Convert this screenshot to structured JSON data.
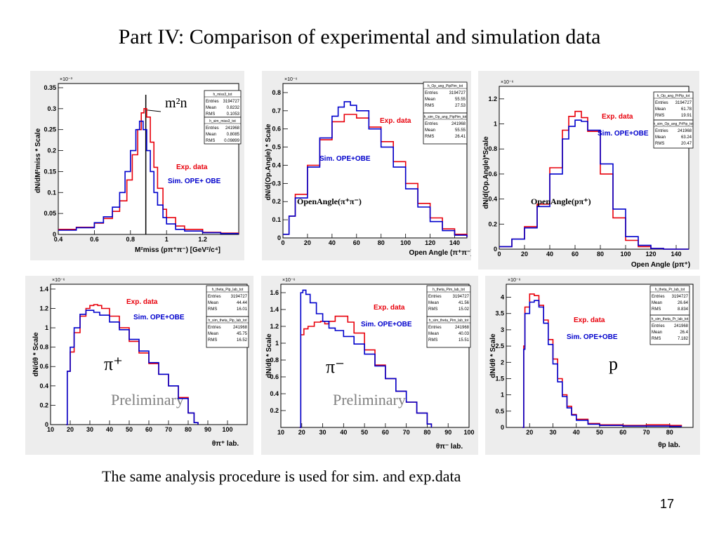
{
  "slide": {
    "title": "Part IV: Comparison of experimental  and simulation data",
    "footer": "The same analysis procedure is used for sim. and exp.data",
    "page_number": "17"
  },
  "colors": {
    "exp": "#e8000b",
    "sim": "#0000cc",
    "frame": "#000000",
    "panel_bg": "#ededed"
  },
  "chart_data": [
    {
      "type": "line",
      "name": "mm2",
      "exponent": "×10⁻³",
      "ylabel": "dN/dM²miss * Scale",
      "xlabel": "M²miss (pπ⁺π⁻) [GeV²/c⁴]",
      "xlim": [
        0.4,
        1.4
      ],
      "ylim": [
        0,
        0.36
      ],
      "xticks": [
        0.4,
        0.6,
        0.8,
        1,
        1.2
      ],
      "yticks": [
        0,
        0.05,
        0.1,
        0.15,
        0.2,
        0.25,
        0.3,
        0.35
      ],
      "exp_label": "Exp. data",
      "sim_label": "Sim. OPE+ OBE",
      "annotation": "m²n",
      "marker_x": 0.885,
      "statbox": [
        {
          "name": "h_miss3_tot",
          "rows": [
            [
              "Entries",
              "3194727"
            ],
            [
              "Mean",
              "0.8232"
            ],
            [
              "RMS",
              "0.1053"
            ]
          ]
        },
        {
          "name": "h_sim_miss3_tot",
          "rows": [
            [
              "Entries",
              "241968"
            ],
            [
              "Mean",
              "0.8085"
            ],
            [
              "RMS",
              "0.09899"
            ]
          ]
        }
      ],
      "series": [
        {
          "name": "Exp. data",
          "color": "#e8000b",
          "x": [
            0.4,
            0.5,
            0.6,
            0.65,
            0.7,
            0.74,
            0.78,
            0.81,
            0.84,
            0.86,
            0.875,
            0.89,
            0.91,
            0.93,
            0.95,
            0.98,
            1.0,
            1.05,
            1.1,
            1.2,
            1.3,
            1.4
          ],
          "y": [
            0.012,
            0.017,
            0.027,
            0.038,
            0.055,
            0.08,
            0.13,
            0.19,
            0.25,
            0.29,
            0.3,
            0.28,
            0.22,
            0.16,
            0.11,
            0.06,
            0.04,
            0.02,
            0.012,
            0.005,
            0.003,
            0.002
          ]
        },
        {
          "name": "Sim. OPE+ OBE",
          "color": "#0000cc",
          "x": [
            0.4,
            0.5,
            0.6,
            0.65,
            0.7,
            0.74,
            0.77,
            0.8,
            0.83,
            0.85,
            0.87,
            0.89,
            0.91,
            0.93,
            0.95,
            0.98,
            1.0,
            1.05,
            1.1,
            1.2,
            1.3,
            1.4
          ],
          "y": [
            0.01,
            0.016,
            0.028,
            0.042,
            0.065,
            0.1,
            0.15,
            0.2,
            0.25,
            0.27,
            0.25,
            0.2,
            0.15,
            0.1,
            0.07,
            0.04,
            0.025,
            0.012,
            0.008,
            0.004,
            0.002,
            0.002
          ]
        }
      ]
    },
    {
      "type": "line",
      "name": "openangle-pipi",
      "exponent": "×10⁻⁶",
      "ylabel": "dN/d(Op.Angle) * Scale",
      "xlabel": "Open Angle (π⁺π⁻)",
      "xlim": [
        0,
        150
      ],
      "ylim": [
        0,
        0.85
      ],
      "xticks": [
        0,
        20,
        40,
        60,
        80,
        100,
        120,
        140
      ],
      "yticks": [
        0,
        0.1,
        0.2,
        0.3,
        0.4,
        0.5,
        0.6,
        0.7,
        0.8
      ],
      "exp_label": "Exp. data",
      "sim_label": "Sim. OPE+OBE",
      "annotation": "OpenAngle(π⁺π⁻)",
      "statbox": [
        {
          "name": "h_Op_ang_PipPim_tot",
          "rows": [
            [
              "Entries",
              "3194727"
            ],
            [
              "Mean",
              "55.55"
            ],
            [
              "RMS",
              "27.53"
            ]
          ]
        },
        {
          "name": "h_sim_Op_ang_PipPim_tot",
          "rows": [
            [
              "Entries",
              "241968"
            ],
            [
              "Mean",
              "55.55"
            ],
            [
              "RMS",
              "26.41"
            ]
          ]
        }
      ],
      "series": [
        {
          "name": "Exp. data",
          "color": "#e8000b",
          "x": [
            0,
            5,
            10,
            20,
            30,
            40,
            50,
            55,
            60,
            70,
            80,
            90,
            100,
            110,
            120,
            130,
            140,
            150
          ],
          "y": [
            0.02,
            0.12,
            0.24,
            0.4,
            0.54,
            0.64,
            0.68,
            0.68,
            0.66,
            0.61,
            0.53,
            0.42,
            0.3,
            0.19,
            0.11,
            0.05,
            0.02,
            0.005
          ]
        },
        {
          "name": "Sim. OPE+OBE",
          "color": "#0000cc",
          "x": [
            0,
            5,
            10,
            20,
            30,
            40,
            45,
            50,
            55,
            60,
            70,
            80,
            90,
            100,
            110,
            120,
            130,
            140,
            150
          ],
          "y": [
            0.02,
            0.12,
            0.22,
            0.39,
            0.55,
            0.67,
            0.72,
            0.75,
            0.73,
            0.7,
            0.6,
            0.5,
            0.39,
            0.27,
            0.17,
            0.09,
            0.04,
            0.015,
            0.005
          ]
        }
      ]
    },
    {
      "type": "line",
      "name": "openangle-ppip",
      "exponent": "×10⁻⁶",
      "ylabel": "dN/d(Op.Angle)*Scale",
      "xlabel": "Open Angle (pπ⁺)",
      "xlim": [
        0,
        150
      ],
      "ylim": [
        0,
        1.3
      ],
      "xticks": [
        0,
        20,
        40,
        60,
        80,
        100,
        120,
        140
      ],
      "yticks": [
        0,
        0.2,
        0.4,
        0.6,
        0.8,
        1,
        1.2
      ],
      "exp_label": "Exp. data",
      "sim_label": "Sim. OPE+OBE",
      "annotation": "OpenAngle(pπ⁺)",
      "statbox": [
        {
          "name": "h_Op_ang_PrPip_tot",
          "rows": [
            [
              "Entries",
              "3194727"
            ],
            [
              "Mean",
              "61.78"
            ],
            [
              "RMS",
              "19.91"
            ]
          ]
        },
        {
          "name": "h_sim_Op_ang_PrPip_tot",
          "rows": [
            [
              "Entries",
              "241968"
            ],
            [
              "Mean",
              "63.24"
            ],
            [
              "RMS",
              "20.47"
            ]
          ]
        }
      ],
      "series": [
        {
          "name": "Exp. data",
          "color": "#e8000b",
          "x": [
            0,
            10,
            20,
            30,
            40,
            50,
            55,
            60,
            65,
            70,
            80,
            90,
            100,
            110,
            120,
            130,
            140,
            150
          ],
          "y": [
            0.02,
            0.08,
            0.18,
            0.36,
            0.65,
            0.95,
            1.06,
            1.1,
            1.05,
            0.94,
            0.6,
            0.25,
            0.07,
            0.02,
            0.005,
            0,
            0,
            0
          ]
        },
        {
          "name": "Sim. OPE+OBE",
          "color": "#0000cc",
          "x": [
            0,
            10,
            20,
            30,
            40,
            50,
            55,
            60,
            65,
            70,
            80,
            90,
            100,
            110,
            120,
            130,
            140,
            150
          ],
          "y": [
            0.02,
            0.08,
            0.17,
            0.34,
            0.6,
            0.88,
            0.98,
            1.03,
            1.02,
            0.95,
            0.68,
            0.32,
            0.1,
            0.03,
            0.005,
            0,
            0,
            0
          ]
        }
      ]
    },
    {
      "type": "line",
      "name": "theta-pip",
      "exponent": "×10⁻⁶",
      "ylabel": "dN/dθ * Scale",
      "xlabel": "θπ⁺ lab.",
      "xlim": [
        10,
        110
      ],
      "ylim": [
        0,
        1.45
      ],
      "xticks": [
        10,
        20,
        30,
        40,
        50,
        60,
        70,
        80,
        90,
        100
      ],
      "yticks": [
        0,
        0.2,
        0.4,
        0.6,
        0.8,
        1,
        1.2,
        1.4
      ],
      "exp_label": "Exp. data",
      "sim_label": "Sim. OPE+OBE",
      "annotation": "π⁺",
      "watermark": "Preliminary",
      "statbox": [
        {
          "name": "h_theta_Pip_lab_tot",
          "rows": [
            [
              "Entries",
              "3194727"
            ],
            [
              "Mean",
              "44.44"
            ],
            [
              "RMS",
              "16.01"
            ]
          ]
        },
        {
          "name": "h_sim_theta_Pip_lab_tot",
          "rows": [
            [
              "Entries",
              "241968"
            ],
            [
              "Mean",
              "45.75"
            ],
            [
              "RMS",
              "16.52"
            ]
          ]
        }
      ],
      "series": [
        {
          "name": "Exp. data",
          "color": "#e8000b",
          "x": [
            18,
            18.5,
            20,
            22,
            25,
            28,
            30,
            32,
            34,
            36,
            40,
            45,
            50,
            55,
            60,
            65,
            70,
            75,
            80,
            83,
            85
          ],
          "y": [
            0,
            0.55,
            0.75,
            0.95,
            1.12,
            1.2,
            1.23,
            1.24,
            1.23,
            1.2,
            1.12,
            1.0,
            0.86,
            0.74,
            0.63,
            0.52,
            0.4,
            0.28,
            0.12,
            0.02,
            0
          ]
        },
        {
          "name": "Sim. OPE+OBE",
          "color": "#0000cc",
          "x": [
            18,
            18.5,
            20,
            22,
            25,
            28,
            30,
            32,
            35,
            40,
            45,
            50,
            55,
            60,
            65,
            70,
            75,
            80,
            83,
            85
          ],
          "y": [
            0,
            0.55,
            0.8,
            1.0,
            1.14,
            1.18,
            1.18,
            1.16,
            1.13,
            1.06,
            0.98,
            0.88,
            0.76,
            0.64,
            0.52,
            0.4,
            0.27,
            0.12,
            0.02,
            0
          ]
        }
      ]
    },
    {
      "type": "line",
      "name": "theta-pim",
      "exponent": "×10⁻⁶",
      "ylabel": "dN/dθ * Scale",
      "xlabel": "θπ⁻ lab.",
      "xlim": [
        10,
        100
      ],
      "ylim": [
        0,
        1.7
      ],
      "xticks": [
        10,
        20,
        30,
        40,
        50,
        60,
        70,
        80,
        90,
        100
      ],
      "yticks": [
        0.2,
        0.4,
        0.6,
        0.8,
        1,
        1.2,
        1.4,
        1.6
      ],
      "exp_label": "Exp. data",
      "sim_label": "Sim. OPE+OBE",
      "annotation": "π⁻",
      "watermark": "Preliminary",
      "statbox": [
        {
          "name": "h_theta_Pim_lab_tot",
          "rows": [
            [
              "Entries",
              "3194727"
            ],
            [
              "Mean",
              "41.56"
            ],
            [
              "RMS",
              "15.02"
            ]
          ]
        },
        {
          "name": "h_sim_theta_Pim_lab_tot",
          "rows": [
            [
              "Entries",
              "241968"
            ],
            [
              "Mean",
              "40.03"
            ],
            [
              "RMS",
              "15.51"
            ]
          ]
        }
      ],
      "series": [
        {
          "name": "Exp. data",
          "color": "#e8000b",
          "x": [
            19,
            19.5,
            21,
            23,
            26,
            29,
            31,
            33,
            36,
            39,
            42,
            45,
            50,
            55,
            60,
            65,
            70,
            75,
            80,
            82
          ],
          "y": [
            0,
            1.1,
            1.17,
            1.2,
            1.25,
            1.26,
            1.23,
            1.26,
            1.32,
            1.32,
            1.25,
            1.12,
            0.92,
            0.74,
            0.58,
            0.43,
            0.3,
            0.17,
            0.04,
            0
          ]
        },
        {
          "name": "Sim. OPE+OBE",
          "color": "#0000cc",
          "x": [
            19,
            19.5,
            20.5,
            22,
            24,
            27,
            30,
            33,
            36,
            40,
            45,
            50,
            55,
            60,
            65,
            70,
            75,
            80,
            82
          ],
          "y": [
            0,
            1.6,
            1.63,
            1.58,
            1.48,
            1.35,
            1.26,
            1.18,
            1.15,
            1.08,
            0.99,
            0.87,
            0.73,
            0.58,
            0.43,
            0.3,
            0.17,
            0.04,
            0
          ]
        }
      ]
    },
    {
      "type": "line",
      "name": "theta-p",
      "exponent": "×10⁻⁶",
      "ylabel": "dN/dθ * Scale",
      "xlabel": "θp lab.",
      "xlim": [
        10,
        90
      ],
      "ylim": [
        0,
        4.4
      ],
      "xticks": [
        20,
        30,
        40,
        50,
        60,
        70,
        80
      ],
      "yticks": [
        0,
        0.5,
        1,
        1.5,
        2,
        2.5,
        3,
        3.5,
        4
      ],
      "exp_label": "Exp. data",
      "sim_label": "Sim. OPE+OBE",
      "annotation": "p",
      "statbox": [
        {
          "name": "h_theta_Pr_lab_tot",
          "rows": [
            [
              "Entries",
              "3194727"
            ],
            [
              "Mean",
              "26.64"
            ],
            [
              "RMS",
              "8.834"
            ]
          ]
        },
        {
          "name": "h_sim_theta_Pr_lab_tot",
          "rows": [
            [
              "Entries",
              "241968"
            ],
            [
              "Mean",
              "26.4"
            ],
            [
              "RMS",
              "7.182"
            ]
          ]
        }
      ],
      "series": [
        {
          "name": "Exp. data",
          "color": "#e8000b",
          "x": [
            17,
            17.5,
            18,
            20,
            22,
            24,
            26,
            28,
            30,
            32,
            34,
            36,
            38,
            40,
            45,
            50,
            60,
            70,
            80,
            85
          ],
          "y": [
            0,
            2.5,
            3.7,
            4.1,
            4.05,
            3.75,
            3.3,
            2.7,
            2.1,
            1.5,
            1.0,
            0.65,
            0.4,
            0.25,
            0.12,
            0.08,
            0.06,
            0.08,
            0.06,
            0.03
          ]
        },
        {
          "name": "Sim. OPE+OBE",
          "color": "#0000cc",
          "x": [
            17,
            17.5,
            18,
            20,
            22,
            24,
            26,
            28,
            30,
            32,
            34,
            36,
            38,
            40,
            45,
            50,
            60,
            70,
            80,
            85
          ],
          "y": [
            0,
            2.4,
            3.5,
            3.85,
            3.9,
            3.7,
            3.2,
            2.55,
            1.95,
            1.4,
            0.95,
            0.6,
            0.38,
            0.22,
            0.1,
            0.06,
            0.04,
            0.04,
            0.03,
            0.02
          ]
        }
      ]
    }
  ]
}
